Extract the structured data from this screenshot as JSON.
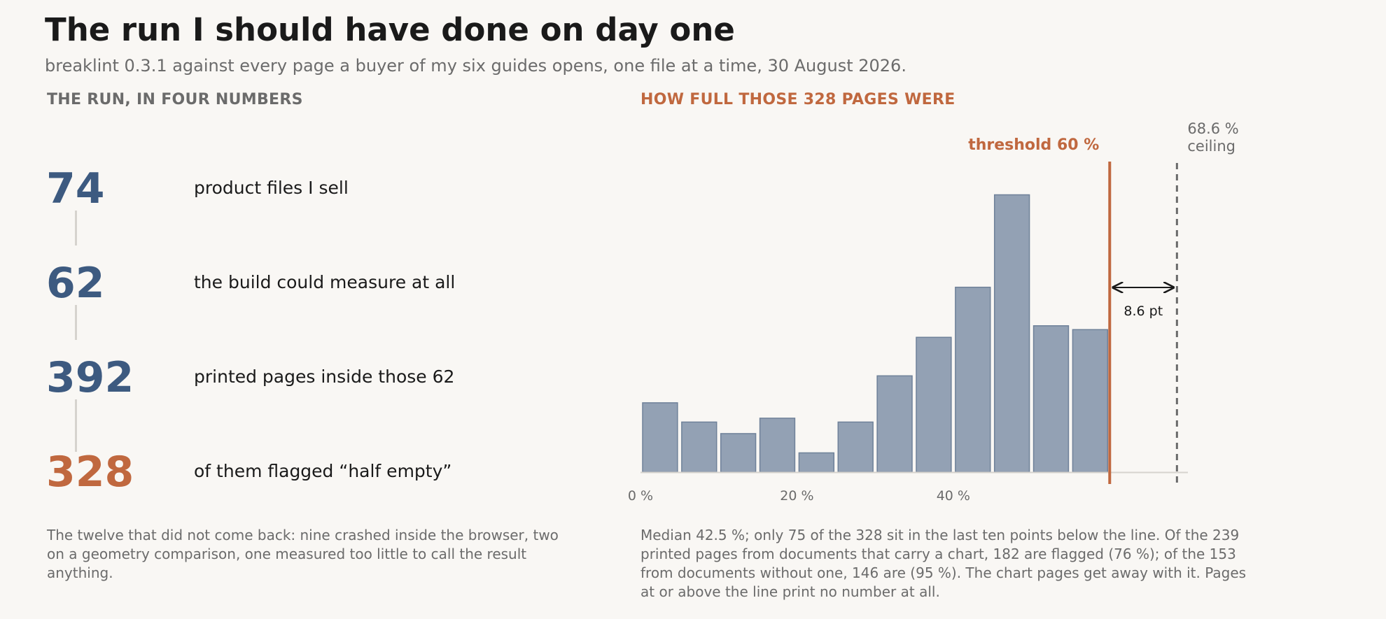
{
  "title": "The run I should have done on day one",
  "subtitle": "breaklint 0.3.1 against every page a buyer of my six guides opens, one file at a time, 30 August 2026.",
  "left_panel": {
    "heading": "THE RUN, IN FOUR NUMBERS",
    "stats": [
      {
        "value": "74",
        "label": "product files I sell"
      },
      {
        "value": "62",
        "label": "the build could measure at all"
      },
      {
        "value": "392",
        "label": "printed pages inside those 62"
      },
      {
        "value": "328",
        "label": "of them flagged “half empty”"
      }
    ],
    "note": "The twelve that did not come back: nine crashed inside the browser, two on a geometry comparison, one measured too little to call the result anything."
  },
  "right_panel": {
    "heading": "HOW FULL THOSE 328 PAGES WERE",
    "note": "Median 42.5 %; only 75 of the 328 sit in the last ten points below the line. Of the 239 printed pages from documents that carry a chart, 182 are flagged (76 %); of the 153 from documents without one, 146 are (95 %). The chart pages get away with it. Pages at or above the line print no number at all."
  },
  "chart_data": {
    "type": "bar",
    "title": "HOW FULL THOSE 328 PAGES WERE",
    "xlabel": "",
    "ylabel": "",
    "bin_width": 5,
    "x": [
      0,
      5,
      10,
      15,
      20,
      25,
      30,
      35,
      40,
      45,
      50,
      55
    ],
    "values": [
      18,
      13,
      10,
      14,
      5,
      13,
      25,
      35,
      48,
      72,
      38,
      37
    ],
    "xlim": [
      0,
      70
    ],
    "ylim": [
      0,
      75
    ],
    "x_ticks": [
      {
        "value": 0,
        "label": "0 %"
      },
      {
        "value": 20,
        "label": "20 %"
      },
      {
        "value": 40,
        "label": "40 %"
      }
    ],
    "threshold": {
      "value": 60,
      "label": "threshold 60 %"
    },
    "ceiling": {
      "value": 68.6,
      "label_value": "68.6 %",
      "label_text": "ceiling"
    },
    "gap": {
      "from": 60,
      "to": 68.6,
      "label": "8.6 pt"
    },
    "grid": false,
    "colors": {
      "bars": "#93a1b4",
      "bar_edge": "#6f8199",
      "threshold": "#c0683f",
      "ceiling": "#6b6b6b",
      "axis": "#d6d3ce"
    }
  }
}
